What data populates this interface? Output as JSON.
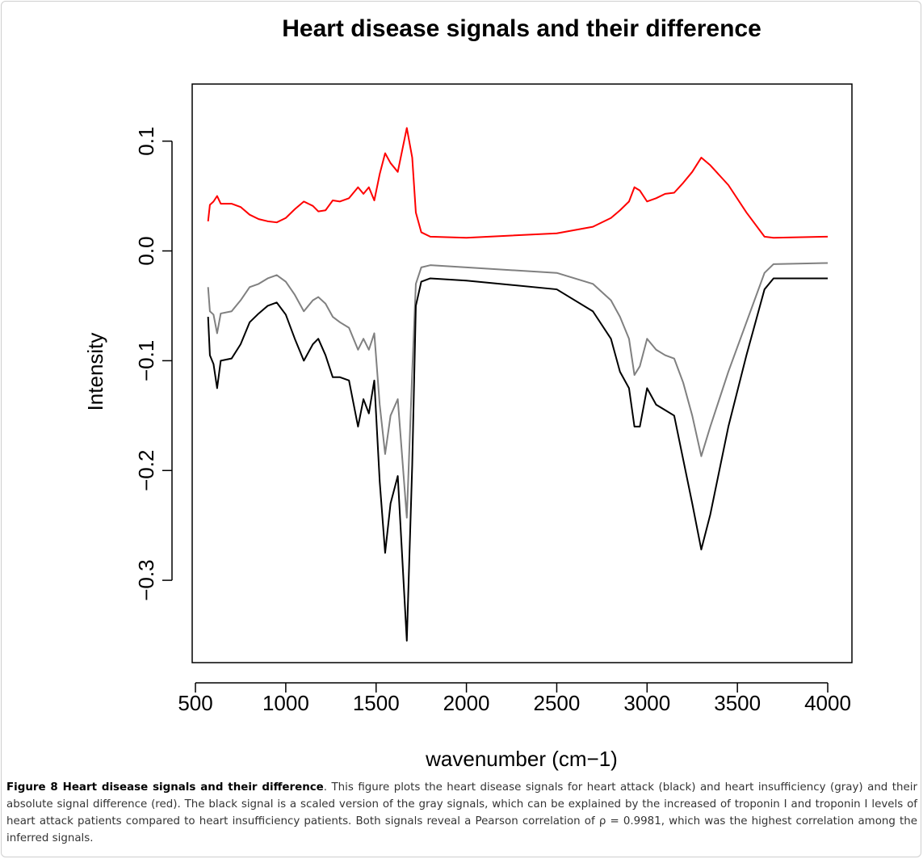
{
  "chart_data": {
    "type": "line",
    "title": "Heart disease signals and their difference",
    "x_label": "wavenumber (cm−1)",
    "y_label": "Intensity",
    "x": [
      570,
      580,
      600,
      620,
      640,
      700,
      750,
      800,
      850,
      900,
      950,
      1000,
      1050,
      1100,
      1150,
      1180,
      1220,
      1260,
      1300,
      1350,
      1400,
      1430,
      1460,
      1490,
      1520,
      1550,
      1580,
      1620,
      1670,
      1700,
      1720,
      1750,
      1800,
      2000,
      2500,
      2700,
      2800,
      2850,
      2900,
      2930,
      2960,
      3000,
      3050,
      3100,
      3150,
      3200,
      3250,
      3300,
      3350,
      3450,
      3550,
      3650,
      3700,
      4000
    ],
    "series": [
      {
        "color": "#ff0000",
        "values": [
          0.027,
          0.042,
          0.045,
          0.05,
          0.043,
          0.043,
          0.04,
          0.033,
          0.029,
          0.027,
          0.026,
          0.03,
          0.038,
          0.045,
          0.041,
          0.036,
          0.037,
          0.046,
          0.045,
          0.048,
          0.058,
          0.052,
          0.058,
          0.046,
          0.07,
          0.089,
          0.08,
          0.072,
          0.112,
          0.085,
          0.035,
          0.017,
          0.013,
          0.012,
          0.016,
          0.022,
          0.03,
          0.037,
          0.045,
          0.058,
          0.055,
          0.045,
          0.048,
          0.052,
          0.053,
          0.062,
          0.072,
          0.085,
          0.078,
          0.06,
          0.035,
          0.013,
          0.012,
          0.013
        ]
      },
      {
        "color": "#808080",
        "values": [
          -0.033,
          -0.055,
          -0.058,
          -0.075,
          -0.057,
          -0.055,
          -0.045,
          -0.033,
          -0.03,
          -0.025,
          -0.022,
          -0.028,
          -0.04,
          -0.055,
          -0.045,
          -0.042,
          -0.048,
          -0.06,
          -0.065,
          -0.07,
          -0.09,
          -0.08,
          -0.09,
          -0.075,
          -0.14,
          -0.185,
          -0.15,
          -0.135,
          -0.243,
          -0.11,
          -0.03,
          -0.015,
          -0.013,
          -0.015,
          -0.02,
          -0.03,
          -0.045,
          -0.06,
          -0.08,
          -0.113,
          -0.105,
          -0.08,
          -0.09,
          -0.095,
          -0.098,
          -0.12,
          -0.15,
          -0.187,
          -0.16,
          -0.11,
          -0.065,
          -0.02,
          -0.012,
          -0.011
        ]
      },
      {
        "color": "#000000",
        "values": [
          -0.06,
          -0.095,
          -0.103,
          -0.125,
          -0.1,
          -0.098,
          -0.085,
          -0.065,
          -0.057,
          -0.05,
          -0.047,
          -0.058,
          -0.08,
          -0.1,
          -0.085,
          -0.08,
          -0.095,
          -0.115,
          -0.115,
          -0.118,
          -0.16,
          -0.135,
          -0.148,
          -0.118,
          -0.21,
          -0.275,
          -0.23,
          -0.205,
          -0.355,
          -0.195,
          -0.05,
          -0.028,
          -0.025,
          -0.027,
          -0.035,
          -0.055,
          -0.08,
          -0.11,
          -0.125,
          -0.16,
          -0.16,
          -0.125,
          -0.14,
          -0.145,
          -0.15,
          -0.19,
          -0.23,
          -0.272,
          -0.24,
          -0.16,
          -0.095,
          -0.035,
          -0.025,
          -0.025
        ]
      }
    ],
    "xlim": [
      482,
      4134
    ],
    "ylim": [
      -0.375,
      0.152
    ],
    "xticks": [
      500,
      1000,
      1500,
      2000,
      2500,
      3000,
      3500,
      4000
    ],
    "yticks": [
      {
        "value": -0.3,
        "label": "−0.3"
      },
      {
        "value": -0.2,
        "label": "−0.2"
      },
      {
        "value": -0.1,
        "label": "−0.1"
      },
      {
        "value": 0,
        "label": "0.0"
      },
      0.1
    ]
  },
  "caption": {
    "label": "Figure 8 Heart disease signals and their difference",
    "text": ". This figure plots the heart disease signals for heart attack (black) and heart insufficiency (gray) and their absolute signal difference (red). The black signal is a scaled version of the gray signals, which can be explained by the increased of troponin I and troponin I levels of heart attack patients compared to heart insufficiency patients. Both signals reveal a Pearson correlation of ρ = 0.9981, which was the highest correlation among the inferred signals."
  }
}
